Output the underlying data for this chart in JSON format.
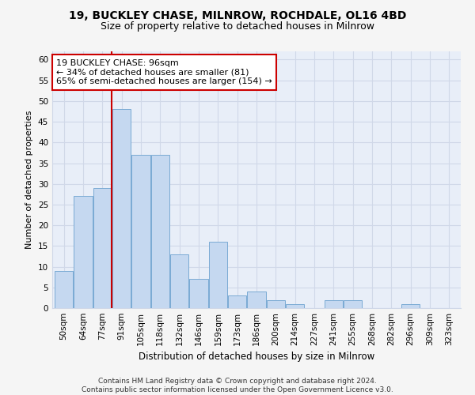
{
  "title1": "19, BUCKLEY CHASE, MILNROW, ROCHDALE, OL16 4BD",
  "title2": "Size of property relative to detached houses in Milnrow",
  "xlabel": "Distribution of detached houses by size in Milnrow",
  "ylabel": "Number of detached properties",
  "categories": [
    "50sqm",
    "64sqm",
    "77sqm",
    "91sqm",
    "105sqm",
    "118sqm",
    "132sqm",
    "146sqm",
    "159sqm",
    "173sqm",
    "186sqm",
    "200sqm",
    "214sqm",
    "227sqm",
    "241sqm",
    "255sqm",
    "268sqm",
    "282sqm",
    "296sqm",
    "309sqm",
    "323sqm"
  ],
  "values": [
    9,
    27,
    29,
    48,
    37,
    37,
    13,
    7,
    16,
    3,
    4,
    2,
    1,
    0,
    2,
    2,
    0,
    0,
    1,
    0,
    0
  ],
  "bar_color": "#c5d8f0",
  "bar_edge_color": "#7aaad4",
  "vline_x": 3.0,
  "vline_color": "#cc0000",
  "annotation_text": "19 BUCKLEY CHASE: 96sqm\n← 34% of detached houses are smaller (81)\n65% of semi-detached houses are larger (154) →",
  "annotation_box_color": "#ffffff",
  "annotation_box_edge": "#cc0000",
  "ylim": [
    0,
    62
  ],
  "yticks": [
    0,
    5,
    10,
    15,
    20,
    25,
    30,
    35,
    40,
    45,
    50,
    55,
    60
  ],
  "bg_color": "#e8eef8",
  "grid_color": "#d0d8e8",
  "footer": "Contains HM Land Registry data © Crown copyright and database right 2024.\nContains public sector information licensed under the Open Government Licence v3.0.",
  "title1_fontsize": 10,
  "title2_fontsize": 9,
  "xlabel_fontsize": 8.5,
  "ylabel_fontsize": 8,
  "tick_fontsize": 7.5,
  "annotation_fontsize": 8,
  "footer_fontsize": 6.5
}
